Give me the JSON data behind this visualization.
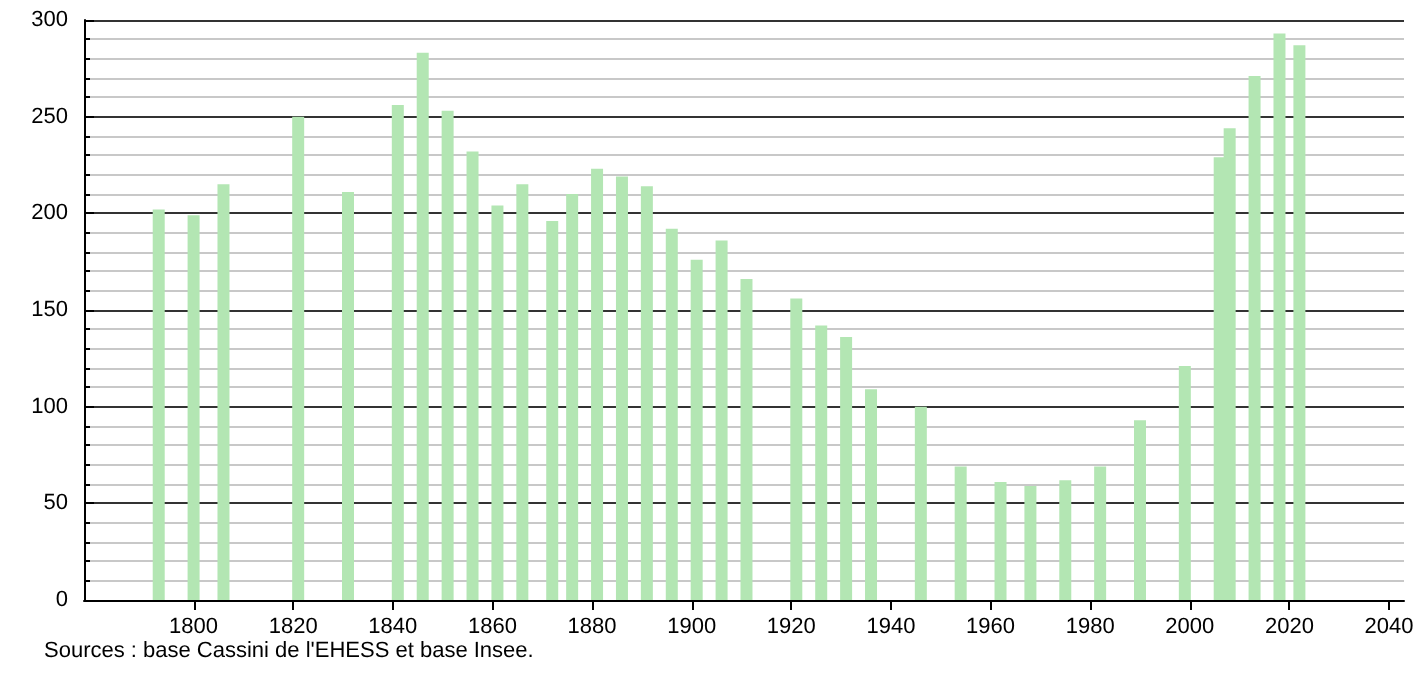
{
  "chart_data": {
    "type": "bar",
    "x": [
      1793,
      1800,
      1806,
      1821,
      1831,
      1841,
      1846,
      1851,
      1856,
      1861,
      1866,
      1872,
      1876,
      1881,
      1886,
      1891,
      1896,
      1901,
      1906,
      1911,
      1921,
      1926,
      1931,
      1936,
      1946,
      1954,
      1962,
      1968,
      1975,
      1982,
      1990,
      1999,
      2006,
      2008,
      2013,
      2018,
      2022
    ],
    "values": [
      202,
      199,
      215,
      250,
      211,
      256,
      283,
      253,
      232,
      204,
      215,
      196,
      210,
      223,
      219,
      214,
      192,
      176,
      186,
      166,
      156,
      142,
      136,
      109,
      100,
      69,
      61,
      59,
      62,
      69,
      93,
      121,
      229,
      244,
      271,
      293,
      287
    ],
    "color": "#b3e6b3",
    "xlim": [
      1778,
      2043
    ],
    "xticks": [
      1800,
      1820,
      1840,
      1860,
      1880,
      1900,
      1920,
      1940,
      1960,
      1980,
      2000,
      2020,
      2040
    ],
    "ylim": [
      0,
      300
    ],
    "yticks": [
      0,
      50,
      100,
      150,
      200,
      250,
      300
    ],
    "grid": "y",
    "annotations": [
      "Sources : base Cassini de l'EHESS et base Insee."
    ]
  }
}
